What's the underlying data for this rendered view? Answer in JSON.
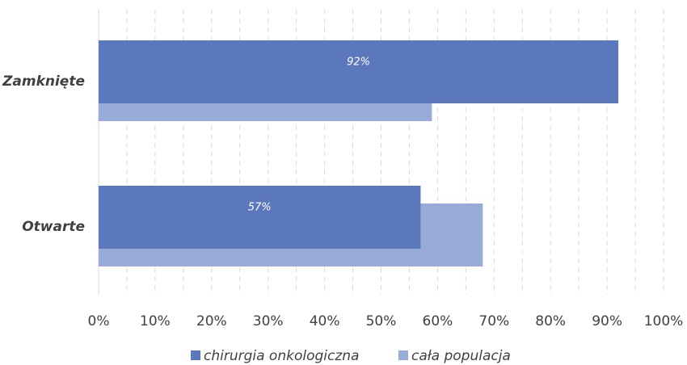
{
  "chart_data": {
    "type": "bar",
    "orientation": "horizontal",
    "categories": [
      "Zamknięte",
      "Otwarte"
    ],
    "series": [
      {
        "name": "chirurgia onkologiczna",
        "color": "#5b78bd",
        "values": [
          92,
          57
        ],
        "value_labels": [
          "92%",
          "57%"
        ]
      },
      {
        "name": "cała populacja",
        "color": "#98aad6",
        "values": [
          59,
          68
        ]
      }
    ],
    "xlim": [
      0,
      100
    ],
    "xticks": [
      {
        "value": 0,
        "label": "0%"
      },
      {
        "value": 10,
        "label": "10%"
      },
      {
        "value": 20,
        "label": "20%"
      },
      {
        "value": 30,
        "label": "30%"
      },
      {
        "value": 40,
        "label": "40%"
      },
      {
        "value": 50,
        "label": "50%"
      },
      {
        "value": 60,
        "label": "60%"
      },
      {
        "value": 70,
        "label": "70%"
      },
      {
        "value": 80,
        "label": "80%"
      },
      {
        "value": 90,
        "label": "90%"
      },
      {
        "value": 100,
        "label": "100%"
      }
    ],
    "xminorticks": [
      5,
      15,
      25,
      35,
      45,
      55,
      65,
      75,
      85,
      95
    ],
    "grid": true,
    "legend": "bottom"
  }
}
